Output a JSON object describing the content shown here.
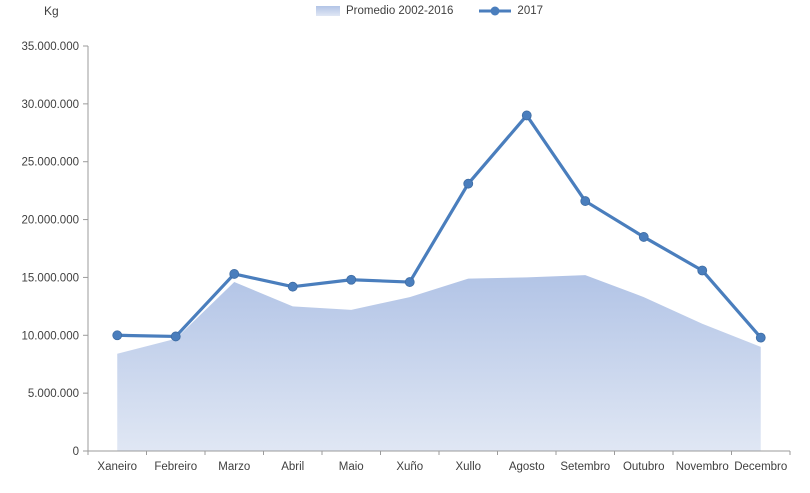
{
  "chart_data": {
    "type": "area+line",
    "title": "",
    "ylabel": "Kg",
    "categories": [
      "Xaneiro",
      "Febreiro",
      "Marzo",
      "Abril",
      "Maio",
      "Xuño",
      "Xullo",
      "Agosto",
      "Setembro",
      "Outubro",
      "Novembro",
      "Decembro"
    ],
    "series": [
      {
        "name": "Promedio 2002-2016",
        "type": "area",
        "values": [
          8400000,
          9700000,
          14600000,
          12500000,
          12200000,
          13300000,
          14900000,
          15000000,
          15200000,
          13300000,
          11000000,
          9000000
        ],
        "fill_top": "#b2c4e6",
        "fill_bottom": "#e0e7f4"
      },
      {
        "name": "2017",
        "type": "line",
        "values": [
          10000000,
          9900000,
          15300000,
          14200000,
          14800000,
          14600000,
          23100000,
          29000000,
          21600000,
          18500000,
          15600000,
          9800000
        ],
        "color": "#4a7ebd",
        "marker": "circle"
      }
    ],
    "ylim": [
      0,
      35000000
    ],
    "y_tick_step": 5000000,
    "y_tick_labels": [
      "0",
      "5.000.000",
      "10.000.000",
      "15.000.000",
      "20.000.000",
      "25.000.000",
      "30.000.000",
      "35.000.000"
    ],
    "axis_color": "#9b9b9b",
    "text_color": "#404040",
    "grid": false,
    "legend_position": "top-center"
  }
}
